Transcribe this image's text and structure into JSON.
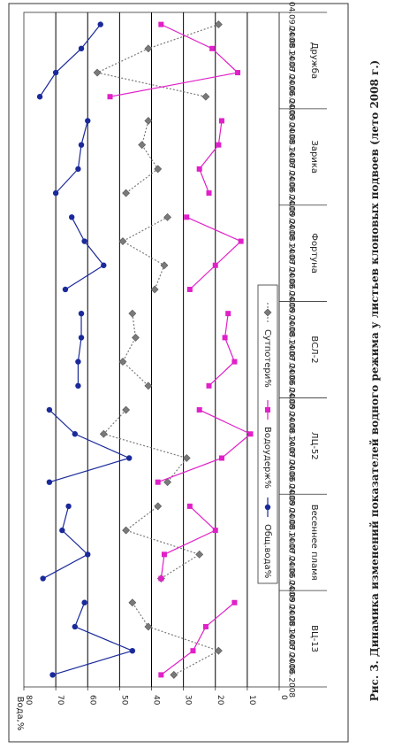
{
  "caption": "Рис. 3. Динамика изменений показателей водного режима у листьев клоновых подвоев (лето 2008 г.)",
  "chart_data": {
    "type": "line",
    "ylabel": "Вода,%",
    "ylim": [
      0,
      80
    ],
    "yticks": [
      0,
      10,
      20,
      30,
      40,
      50,
      60,
      70,
      80
    ],
    "grid": true,
    "legend_position": "top-center",
    "groups": [
      {
        "name": "ВЦ-13",
        "dates": [
          "04.06.2008",
          "14.07.2008",
          "04.08.2008",
          "04.09.2008"
        ]
      },
      {
        "name": "Весеннее пламя",
        "dates": [
          "04.06.2008",
          "14.07.2008",
          "04.08.2008",
          "04.09.2008"
        ]
      },
      {
        "name": "ЛЦ-52",
        "dates": [
          "04.06.2008",
          "14.07.2008",
          "04.08.2008",
          "04.09.2008"
        ]
      },
      {
        "name": "ВСЛ-2",
        "dates": [
          "04.06.2008",
          "14.07.2008",
          "04.08.2008",
          "04.09.2008"
        ]
      },
      {
        "name": "Фортуна",
        "dates": [
          "04.06.2008",
          "14.07.2008",
          "04.08.2008",
          "04.09.2008"
        ]
      },
      {
        "name": "Зарика",
        "dates": [
          "04.06.2008",
          "14.07.2008",
          "04.08.2008",
          "04.09.2008"
        ]
      },
      {
        "name": "Дружба",
        "dates": [
          "04.06.2008",
          "14.07.2008",
          "04.08.2008",
          "04.09.2008"
        ]
      }
    ],
    "series": [
      {
        "name": "Сутпотери%",
        "color": "#7a7a7a",
        "marker": "diamond",
        "line": "dotted",
        "values": [
          [
            33,
            19,
            41,
            46
          ],
          [
            37,
            25,
            48,
            38
          ],
          [
            35,
            29,
            55,
            48
          ],
          [
            41,
            49,
            45,
            46
          ],
          [
            39,
            36,
            49,
            35
          ],
          [
            48,
            38,
            43,
            41
          ],
          [
            23,
            57,
            41,
            19
          ]
        ]
      },
      {
        "name": "Водоудерж%",
        "color": "#e020c8",
        "marker": "square",
        "line": "solid",
        "values": [
          [
            37,
            27,
            23,
            14
          ],
          [
            37,
            36,
            20,
            28
          ],
          [
            38,
            18,
            9,
            25
          ],
          [
            22,
            14,
            17,
            16
          ],
          [
            28,
            20,
            12,
            29
          ],
          [
            22,
            25,
            19,
            18
          ],
          [
            53,
            13,
            21,
            37
          ]
        ]
      },
      {
        "name": "Общ.вода%",
        "color": "#1a2a9a",
        "marker": "circle",
        "line": "solid",
        "values": [
          [
            71,
            46,
            64,
            61
          ],
          [
            74,
            60,
            68,
            66
          ],
          [
            72,
            47,
            64,
            72
          ],
          [
            63,
            63,
            62,
            62
          ],
          [
            67,
            55,
            61,
            65
          ],
          [
            70,
            63,
            62,
            60
          ],
          [
            75,
            70,
            62,
            56
          ]
        ]
      }
    ]
  }
}
